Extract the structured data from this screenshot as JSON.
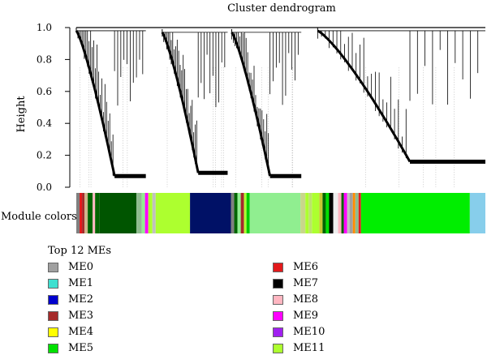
{
  "chart_data": {
    "type": "dendrogram",
    "title": "Cluster dendrogram",
    "ylabel": "Height",
    "ylim": [
      0,
      1
    ],
    "yticks": [
      "0.0",
      "0.2",
      "0.4",
      "0.6",
      "0.8",
      "1.0"
    ],
    "module_bar_label": "Module colors",
    "legend_title": "Top 12 MEs",
    "legend": [
      {
        "name": "ME0",
        "color": "#a0a0a0"
      },
      {
        "name": "ME1",
        "color": "#40e0d0"
      },
      {
        "name": "ME2",
        "color": "#0000cd"
      },
      {
        "name": "ME3",
        "color": "#a52a2a"
      },
      {
        "name": "ME4",
        "color": "#ffff00"
      },
      {
        "name": "ME5",
        "color": "#00e000"
      },
      {
        "name": "ME6",
        "color": "#e31a1c"
      },
      {
        "name": "ME7",
        "color": "#000000"
      },
      {
        "name": "ME8",
        "color": "#ffb6c1"
      },
      {
        "name": "ME9",
        "color": "#ff00ff"
      },
      {
        "name": "ME10",
        "color": "#a020f0"
      },
      {
        "name": "ME11",
        "color": "#adff2f"
      }
    ],
    "clusters": [
      {
        "start": 0.0,
        "end": 0.17,
        "top": 1.0,
        "merge": 0.98,
        "floor": 0.07
      },
      {
        "start": 0.21,
        "end": 0.37,
        "top": 0.99,
        "merge": 0.97,
        "floor": 0.09
      },
      {
        "start": 0.38,
        "end": 0.55,
        "top": 0.99,
        "merge": 0.97,
        "floor": 0.07
      },
      {
        "start": 0.59,
        "end": 1.0,
        "top": 1.0,
        "merge": 0.98,
        "floor": 0.16
      }
    ],
    "module_segments": [
      {
        "from": 0.0,
        "to": 0.008,
        "color": "#808080"
      },
      {
        "from": 0.008,
        "to": 0.014,
        "color": "#e31a1c"
      },
      {
        "from": 0.014,
        "to": 0.02,
        "color": "#a52a2a"
      },
      {
        "from": 0.02,
        "to": 0.028,
        "color": "#d2b48c"
      },
      {
        "from": 0.028,
        "to": 0.04,
        "color": "#006400"
      },
      {
        "from": 0.04,
        "to": 0.046,
        "color": "#ffb6c1"
      },
      {
        "from": 0.046,
        "to": 0.056,
        "color": "#006400"
      },
      {
        "from": 0.056,
        "to": 0.147,
        "color": "#005500"
      },
      {
        "from": 0.147,
        "to": 0.16,
        "color": "#8fbc8f"
      },
      {
        "from": 0.16,
        "to": 0.168,
        "color": "#90ee90"
      },
      {
        "from": 0.168,
        "to": 0.176,
        "color": "#ff00ff"
      },
      {
        "from": 0.176,
        "to": 0.186,
        "color": "#adff2f"
      },
      {
        "from": 0.186,
        "to": 0.194,
        "color": "#c0c0c0"
      },
      {
        "from": 0.194,
        "to": 0.278,
        "color": "#adff2f"
      },
      {
        "from": 0.278,
        "to": 0.378,
        "color": "#001166"
      },
      {
        "from": 0.378,
        "to": 0.386,
        "color": "#808080"
      },
      {
        "from": 0.386,
        "to": 0.394,
        "color": "#006400"
      },
      {
        "from": 0.394,
        "to": 0.402,
        "color": "#90ee90"
      },
      {
        "from": 0.402,
        "to": 0.41,
        "color": "#a52a2a"
      },
      {
        "from": 0.41,
        "to": 0.416,
        "color": "#adff2f"
      },
      {
        "from": 0.416,
        "to": 0.424,
        "color": "#00cc00"
      },
      {
        "from": 0.424,
        "to": 0.548,
        "color": "#90ee90"
      },
      {
        "from": 0.548,
        "to": 0.56,
        "color": "#c8d68a"
      },
      {
        "from": 0.56,
        "to": 0.568,
        "color": "#adff2f"
      },
      {
        "from": 0.568,
        "to": 0.576,
        "color": "#bce36b"
      },
      {
        "from": 0.576,
        "to": 0.594,
        "color": "#adff2f"
      },
      {
        "from": 0.594,
        "to": 0.602,
        "color": "#c8c832"
      },
      {
        "from": 0.602,
        "to": 0.61,
        "color": "#006400"
      },
      {
        "from": 0.61,
        "to": 0.618,
        "color": "#00e000"
      },
      {
        "from": 0.618,
        "to": 0.628,
        "color": "#000000"
      },
      {
        "from": 0.628,
        "to": 0.64,
        "color": "#eeeeee"
      },
      {
        "from": 0.64,
        "to": 0.648,
        "color": "#ffb6c1"
      },
      {
        "from": 0.648,
        "to": 0.654,
        "color": "#006400"
      },
      {
        "from": 0.654,
        "to": 0.662,
        "color": "#ff00ff"
      },
      {
        "from": 0.662,
        "to": 0.668,
        "color": "#c0c0c0"
      },
      {
        "from": 0.668,
        "to": 0.676,
        "color": "#a0a0a0"
      },
      {
        "from": 0.676,
        "to": 0.682,
        "color": "#ff8c00"
      },
      {
        "from": 0.682,
        "to": 0.69,
        "color": "#8fbc8f"
      },
      {
        "from": 0.69,
        "to": 0.696,
        "color": "#e31a1c"
      },
      {
        "from": 0.696,
        "to": 0.962,
        "color": "#00ee00"
      },
      {
        "from": 0.962,
        "to": 1.0,
        "color": "#87ceeb"
      }
    ]
  }
}
